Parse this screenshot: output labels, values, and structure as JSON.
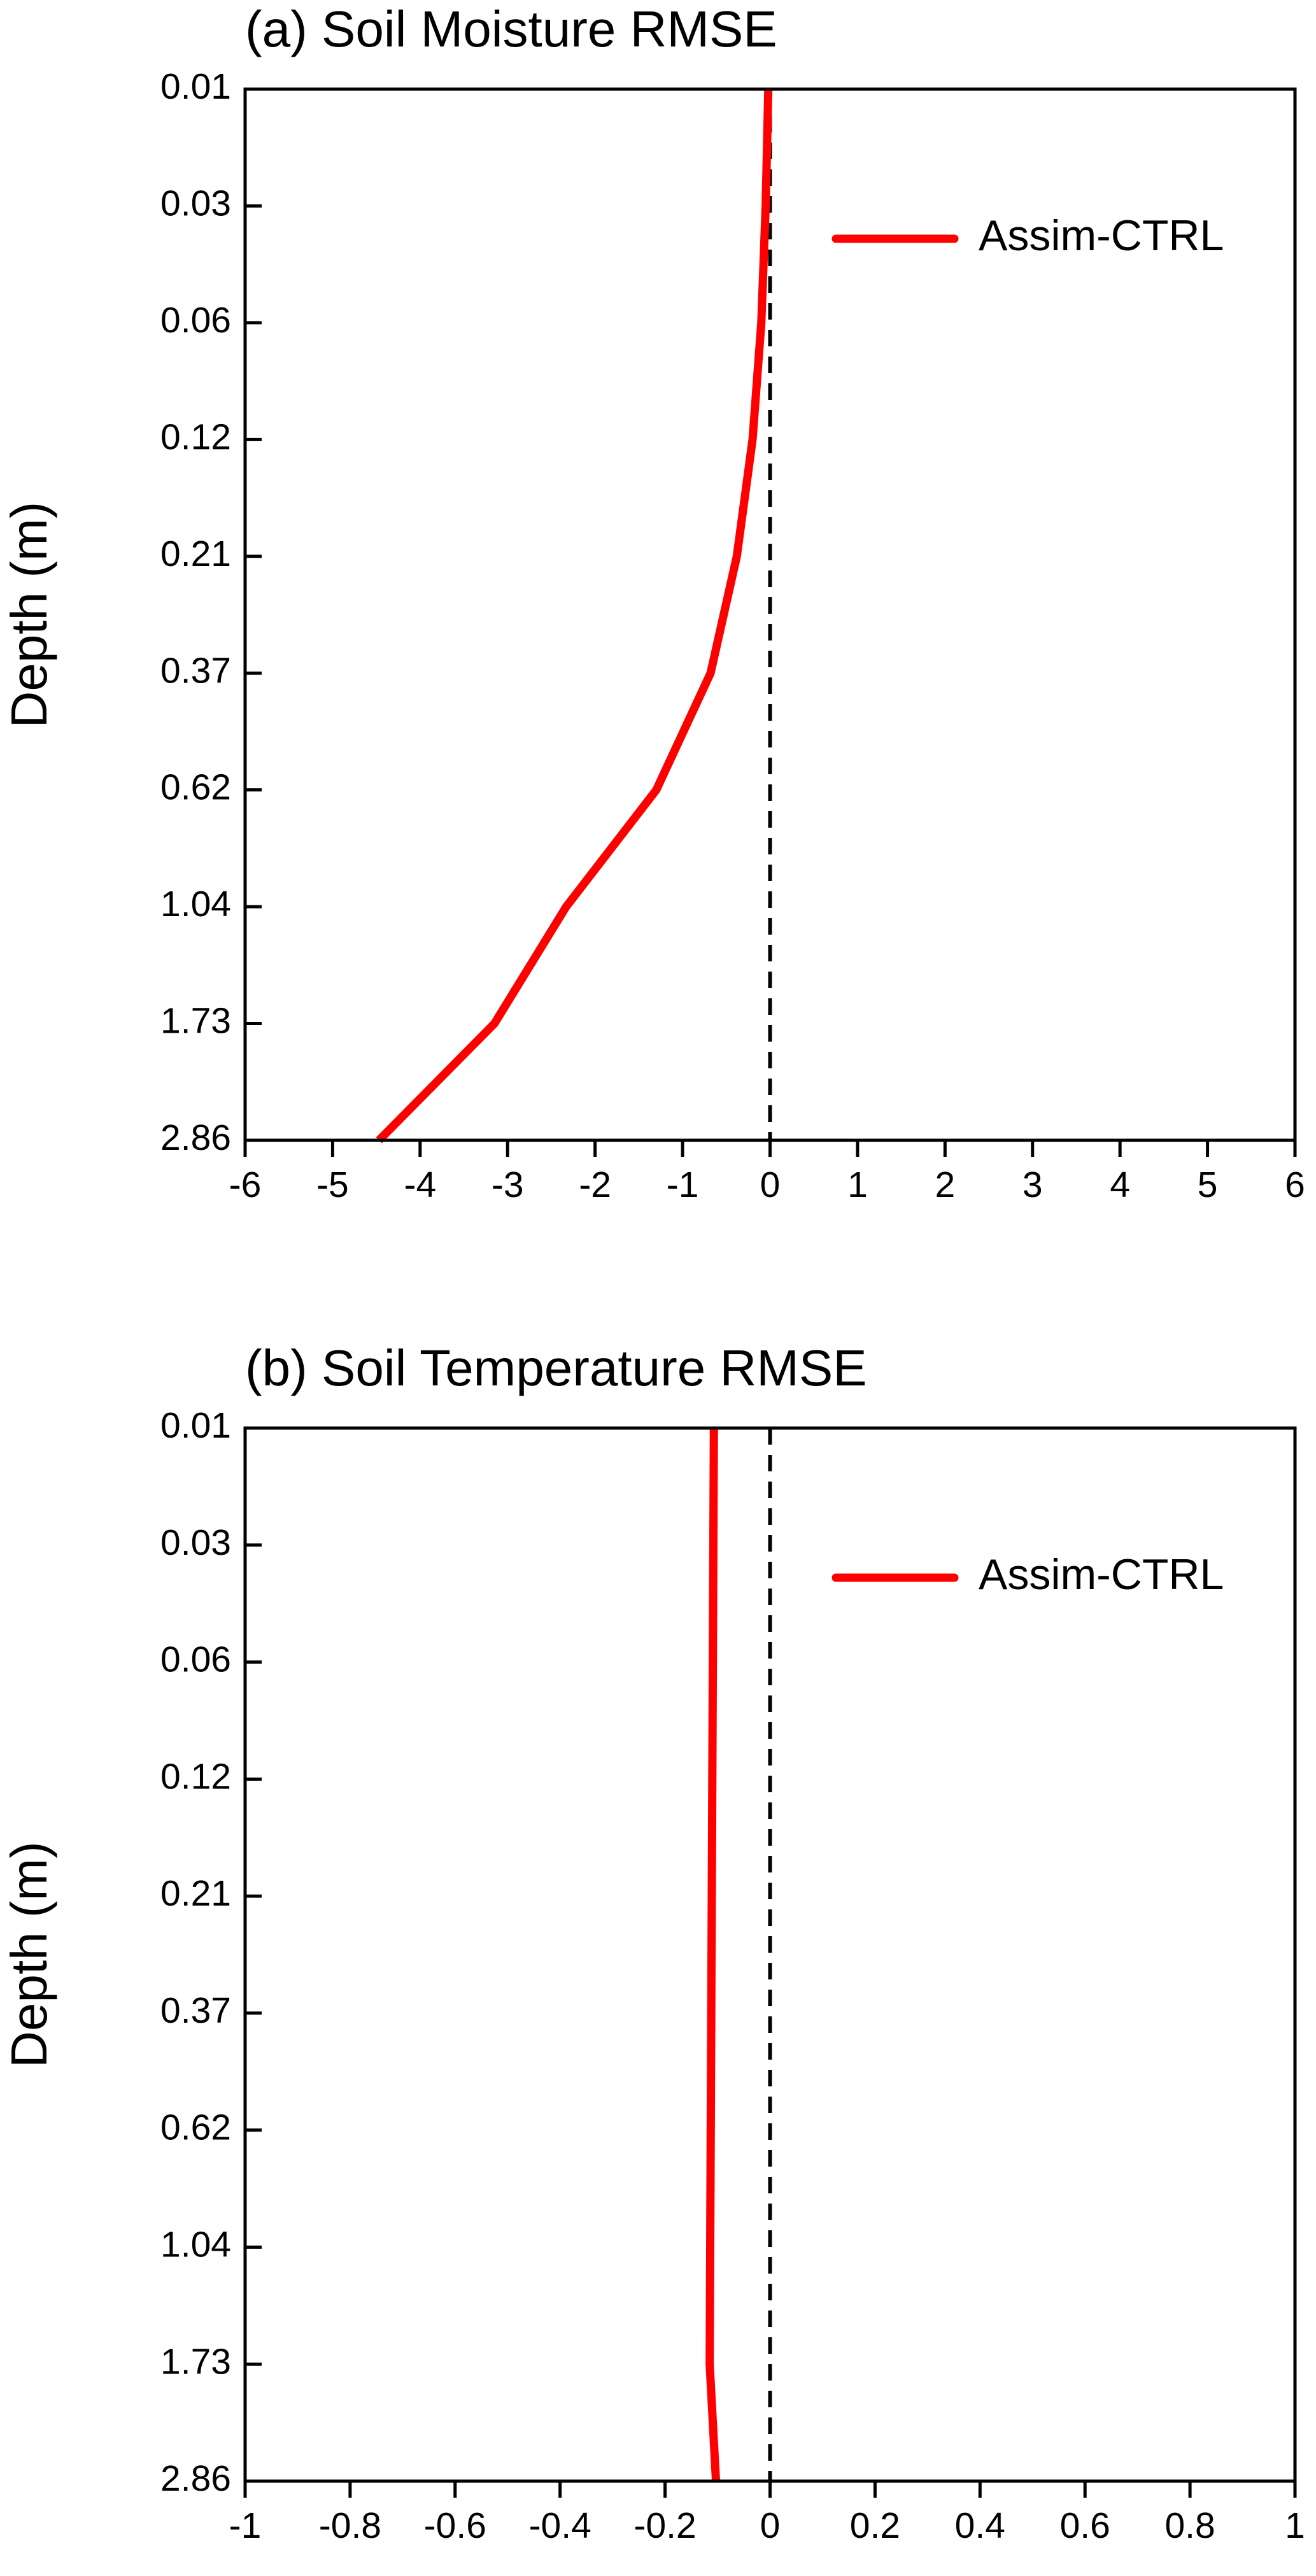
{
  "chart_data": [
    {
      "type": "line",
      "orientation": "horizontal",
      "title": "(a) Soil Moisture RMSE",
      "y_label": "Depth (m)",
      "categories": [
        "0.01",
        "0.03",
        "0.06",
        "0.12",
        "0.21",
        "0.37",
        "0.62",
        "1.04",
        "1.73",
        "2.86"
      ],
      "series": [
        {
          "name": "Assim-CTRL",
          "color": "#ff0000",
          "values": [
            -0.02,
            -0.05,
            -0.1,
            -0.2,
            -0.38,
            -0.68,
            -1.3,
            -2.33,
            -3.15,
            -4.47
          ]
        }
      ],
      "xlim": [
        -6,
        6
      ],
      "xticks": [
        -6,
        -5,
        -4,
        -3,
        -2,
        -1,
        0,
        1,
        2,
        3,
        4,
        5,
        6
      ],
      "reference_line": 0,
      "legend": "upper right"
    },
    {
      "type": "line",
      "orientation": "horizontal",
      "title": "(b) Soil Temperature RMSE",
      "y_label": "Depth (m)",
      "categories": [
        "0.01",
        "0.03",
        "0.06",
        "0.12",
        "0.21",
        "0.37",
        "0.62",
        "1.04",
        "1.73",
        "2.86"
      ],
      "series": [
        {
          "name": "Assim-CTRL",
          "color": "#ff0000",
          "values": [
            -0.107,
            -0.108,
            -0.109,
            -0.11,
            -0.111,
            -0.112,
            -0.113,
            -0.114,
            -0.115,
            -0.103
          ]
        }
      ],
      "xlim": [
        -1,
        1
      ],
      "xticks": [
        -1,
        -0.8,
        -0.6,
        -0.4,
        -0.2,
        0,
        0.2,
        0.4,
        0.6,
        0.8,
        1
      ],
      "reference_line": 0,
      "legend": "upper right"
    }
  ]
}
